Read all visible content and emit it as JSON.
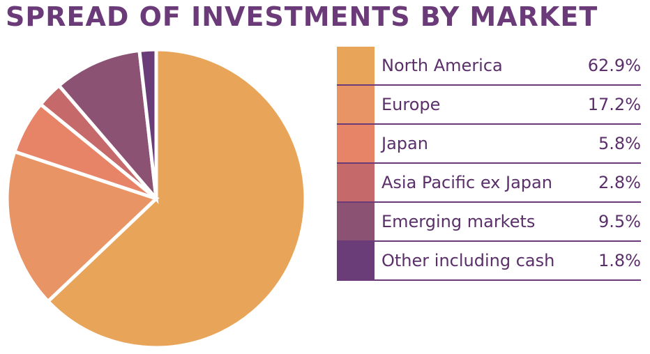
{
  "chart_data": {
    "type": "pie",
    "title": "SPREAD OF INVESTMENTS BY MARKET",
    "categories": [
      "North America",
      "Europe",
      "Japan",
      "Asia Pacific ex Japan",
      "Emerging markets",
      "Other including cash"
    ],
    "values": [
      62.9,
      17.2,
      5.8,
      2.8,
      9.5,
      1.8
    ],
    "value_labels": [
      "62.9%",
      "17.2%",
      "5.8%",
      "2.8%",
      "9.5%",
      "1.8%"
    ],
    "colors": [
      "#e8a55a",
      "#e89464",
      "#e78468",
      "#c5696a",
      "#8c5273",
      "#6b3d78"
    ]
  }
}
